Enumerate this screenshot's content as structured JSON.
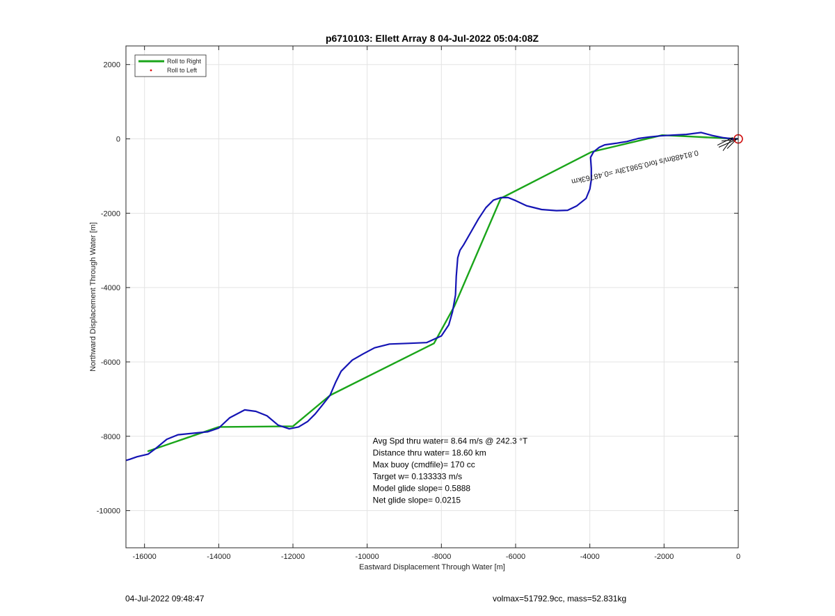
{
  "chart_data": {
    "type": "line",
    "title": "p6710103: Ellett Array 8 04-Jul-2022 05:04:08Z",
    "xlabel": "Eastward Displacement Through Water [m]",
    "ylabel": "Northward Displacement Through Water [m]",
    "xlim": [
      -16500,
      0
    ],
    "ylim": [
      -11000,
      2500
    ],
    "xticks": [
      -16000,
      -14000,
      -12000,
      -10000,
      -8000,
      -6000,
      -4000,
      -2000,
      0
    ],
    "yticks": [
      -10000,
      -8000,
      -6000,
      -4000,
      -2000,
      0,
      2000
    ],
    "grid": true,
    "legend_position": "top-left",
    "legend": [
      {
        "label": "Roll to Right",
        "color": "#1aa51a",
        "style": "line"
      },
      {
        "label": "Roll to Left",
        "color": "#e01010",
        "style": "dot"
      }
    ],
    "series": [
      {
        "name": "Roll to Right",
        "color": "#1aa51a",
        "x": [
          -15900,
          -14000,
          -12000,
          -11000,
          -8200,
          -7650,
          -6400,
          -3950,
          -2050,
          0
        ],
        "y": [
          -8400,
          -7750,
          -7730,
          -6900,
          -5500,
          -4500,
          -1600,
          -350,
          100,
          0
        ]
      },
      {
        "name": "track",
        "color": "#1414b4",
        "x": [
          -16500,
          -16400,
          -16200,
          -15900,
          -15700,
          -15400,
          -15100,
          -14700,
          -14300,
          -14000,
          -13700,
          -13300,
          -13000,
          -12700,
          -12400,
          -12100,
          -11850,
          -11600,
          -11400,
          -11200,
          -11000,
          -10850,
          -10700,
          -10400,
          -10100,
          -9800,
          -9400,
          -8900,
          -8400,
          -8000,
          -7800,
          -7700,
          -7620,
          -7600,
          -7560,
          -7500,
          -7400,
          -7200,
          -7000,
          -6800,
          -6600,
          -6400,
          -6200,
          -6000,
          -5700,
          -5300,
          -4900,
          -4600,
          -4350,
          -4100,
          -4000,
          -3960,
          -3960,
          -3980,
          -3900,
          -3750,
          -3600,
          -3450,
          -3300,
          -3000,
          -2700,
          -2400,
          -2100,
          -1800,
          -1400,
          -1000,
          -700,
          -400,
          -150,
          0
        ],
        "y": [
          -8650,
          -8620,
          -8550,
          -8480,
          -8330,
          -8080,
          -7960,
          -7920,
          -7880,
          -7780,
          -7500,
          -7290,
          -7330,
          -7450,
          -7700,
          -7800,
          -7750,
          -7600,
          -7400,
          -7150,
          -6900,
          -6550,
          -6250,
          -5950,
          -5780,
          -5620,
          -5520,
          -5500,
          -5480,
          -5300,
          -5000,
          -4650,
          -4200,
          -3700,
          -3200,
          -3000,
          -2850,
          -2500,
          -2150,
          -1850,
          -1650,
          -1580,
          -1580,
          -1660,
          -1800,
          -1900,
          -1930,
          -1920,
          -1800,
          -1600,
          -1350,
          -1100,
          -800,
          -500,
          -350,
          -230,
          -160,
          -140,
          -120,
          -70,
          10,
          50,
          80,
          100,
          120,
          170,
          90,
          30,
          0,
          0
        ]
      }
    ],
    "annotations": {
      "current_arrow_text": "0.81488m/s for0.59813hr =0.48763km",
      "stats": [
        "Avg Spd thru water=  8.64 m/s @ 242.3 °T",
        "Distance thru water= 18.60 km",
        "Max buoy (cmdfile)= 170 cc",
        "Target w= 0.133333 m/s",
        "Model glide slope= 0.5888",
        "Net glide slope= 0.0215"
      ],
      "stats_anchor": [
        -9850,
        -8200
      ]
    },
    "end_marker": {
      "x": 0,
      "y": 0,
      "color": "#d01010"
    }
  },
  "footer": {
    "left": "04-Jul-2022 09:48:47",
    "right": "volmax=51792.9cc, mass=52.831kg"
  }
}
